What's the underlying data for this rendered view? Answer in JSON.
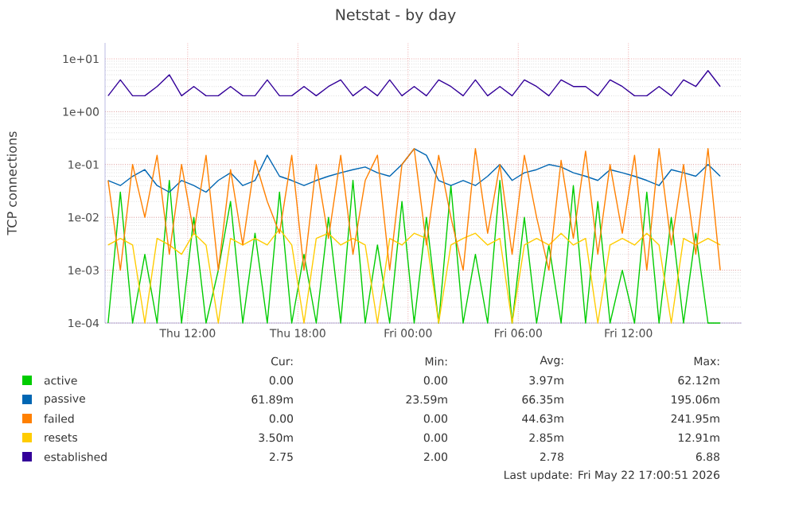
{
  "chart_data": {
    "type": "line",
    "title": "Netstat - by day",
    "ylabel": "TCP connections",
    "log": "y",
    "grid": true,
    "legend": "bottom",
    "xlim": [
      "2026-05-21T07:30",
      "2026-05-22T18:10"
    ],
    "xticks": [
      {
        "value": "2026-05-21T12:00",
        "label": "Thu 12:00"
      },
      {
        "value": "2026-05-21T18:00",
        "label": "Thu 18:00"
      },
      {
        "value": "2026-05-22T00:00",
        "label": "Fri 00:00"
      },
      {
        "value": "2026-05-22T06:00",
        "label": "Fri 06:00"
      },
      {
        "value": "2026-05-22T12:00",
        "label": "Fri 12:00"
      }
    ],
    "ylim": [
      0.0001,
      20
    ],
    "yticks": [
      {
        "value": 0.0001,
        "label": "1e-04"
      },
      {
        "value": 0.001,
        "label": "1e-03"
      },
      {
        "value": 0.01,
        "label": "1e-02"
      },
      {
        "value": 0.1,
        "label": "1e-01"
      },
      {
        "value": 1,
        "label": "1e+00"
      },
      {
        "value": 10,
        "label": "1e+01"
      }
    ],
    "x": [
      "2026-05-21T07:40",
      "2026-05-21T08:20",
      "2026-05-21T09:00",
      "2026-05-21T09:40",
      "2026-05-21T10:20",
      "2026-05-21T11:00",
      "2026-05-21T11:40",
      "2026-05-21T12:20",
      "2026-05-21T13:00",
      "2026-05-21T13:40",
      "2026-05-21T14:20",
      "2026-05-21T15:00",
      "2026-05-21T15:40",
      "2026-05-21T16:20",
      "2026-05-21T17:00",
      "2026-05-21T17:40",
      "2026-05-21T18:20",
      "2026-05-21T19:00",
      "2026-05-21T19:40",
      "2026-05-21T20:20",
      "2026-05-21T21:00",
      "2026-05-21T21:40",
      "2026-05-21T22:20",
      "2026-05-21T23:00",
      "2026-05-21T23:40",
      "2026-05-22T00:20",
      "2026-05-22T01:00",
      "2026-05-22T01:40",
      "2026-05-22T02:20",
      "2026-05-22T03:00",
      "2026-05-22T03:40",
      "2026-05-22T04:20",
      "2026-05-22T05:00",
      "2026-05-22T05:40",
      "2026-05-22T06:20",
      "2026-05-22T07:00",
      "2026-05-22T07:40",
      "2026-05-22T08:20",
      "2026-05-22T09:00",
      "2026-05-22T09:40",
      "2026-05-22T10:20",
      "2026-05-22T11:00",
      "2026-05-22T11:40",
      "2026-05-22T12:20",
      "2026-05-22T13:00",
      "2026-05-22T13:40",
      "2026-05-22T14:20",
      "2026-05-22T15:00",
      "2026-05-22T15:40",
      "2026-05-22T16:20",
      "2026-05-22T17:00"
    ],
    "series": [
      {
        "name": "active",
        "color": "#00cc00",
        "values": [
          0.0001,
          0.03,
          0.0001,
          0.002,
          0.0001,
          0.05,
          0.0001,
          0.01,
          0.0001,
          0.001,
          0.02,
          0.0001,
          0.005,
          0.0001,
          0.03,
          0.0001,
          0.002,
          0.0001,
          0.01,
          0.0001,
          0.05,
          0.0001,
          0.003,
          0.0001,
          0.02,
          0.0001,
          0.01,
          0.0001,
          0.04,
          0.0001,
          0.002,
          0.0001,
          0.05,
          0.0001,
          0.01,
          0.0001,
          0.003,
          0.0001,
          0.04,
          0.0001,
          0.02,
          0.0001,
          0.001,
          0.0001,
          0.03,
          0.0001,
          0.01,
          0.0001,
          0.005,
          0.0001,
          0.0001
        ]
      },
      {
        "name": "passive",
        "color": "#0066b3",
        "values": [
          0.05,
          0.04,
          0.06,
          0.08,
          0.04,
          0.03,
          0.05,
          0.04,
          0.03,
          0.05,
          0.07,
          0.04,
          0.05,
          0.15,
          0.06,
          0.05,
          0.04,
          0.05,
          0.06,
          0.07,
          0.08,
          0.09,
          0.07,
          0.06,
          0.1,
          0.2,
          0.15,
          0.05,
          0.04,
          0.05,
          0.04,
          0.06,
          0.1,
          0.05,
          0.07,
          0.08,
          0.1,
          0.09,
          0.07,
          0.06,
          0.05,
          0.08,
          0.07,
          0.06,
          0.05,
          0.04,
          0.08,
          0.07,
          0.06,
          0.1,
          0.06
        ]
      },
      {
        "name": "failed",
        "color": "#ff8000",
        "values": [
          0.05,
          0.001,
          0.1,
          0.01,
          0.15,
          0.002,
          0.1,
          0.005,
          0.15,
          0.001,
          0.08,
          0.003,
          0.12,
          0.02,
          0.005,
          0.15,
          0.001,
          0.1,
          0.004,
          0.15,
          0.002,
          0.05,
          0.15,
          0.001,
          0.1,
          0.2,
          0.003,
          0.15,
          0.01,
          0.001,
          0.2,
          0.005,
          0.1,
          0.002,
          0.15,
          0.01,
          0.001,
          0.12,
          0.004,
          0.18,
          0.002,
          0.1,
          0.005,
          0.15,
          0.001,
          0.2,
          0.003,
          0.1,
          0.002,
          0.2,
          0.001
        ]
      },
      {
        "name": "resets",
        "color": "#ffcc00",
        "values": [
          0.003,
          0.004,
          0.003,
          0.0001,
          0.004,
          0.003,
          0.002,
          0.005,
          0.003,
          0.0001,
          0.004,
          0.003,
          0.004,
          0.003,
          0.006,
          0.003,
          0.0001,
          0.004,
          0.005,
          0.003,
          0.004,
          0.003,
          0.0001,
          0.004,
          0.003,
          0.005,
          0.004,
          0.0001,
          0.003,
          0.004,
          0.005,
          0.003,
          0.004,
          0.0001,
          0.003,
          0.004,
          0.003,
          0.005,
          0.003,
          0.004,
          0.0001,
          0.003,
          0.004,
          0.003,
          0.005,
          0.003,
          0.0001,
          0.004,
          0.003,
          0.004,
          0.003
        ]
      },
      {
        "name": "established",
        "color": "#330099",
        "values": [
          2,
          4,
          2,
          2,
          3,
          5,
          2,
          3,
          2,
          2,
          3,
          2,
          2,
          4,
          2,
          2,
          3,
          2,
          3,
          4,
          2,
          3,
          2,
          4,
          2,
          3,
          2,
          4,
          3,
          2,
          4,
          2,
          3,
          2,
          4,
          3,
          2,
          4,
          3,
          3,
          2,
          4,
          3,
          2,
          2,
          3,
          2,
          4,
          3,
          6,
          3
        ]
      }
    ],
    "annotations": [
      "Cur:",
      "Min:",
      "Avg:",
      "Max:",
      "0.00",
      "0.00",
      "3.97m",
      "62.12m",
      "61.89m",
      "23.59m",
      "66.35m",
      "195.06m",
      "0.00",
      "0.00",
      "44.63m",
      "241.95m",
      "3.50m",
      "0.00",
      "2.85m",
      "12.91m",
      "2.75",
      "2.00",
      "2.78",
      "6.88",
      "Last update: Fri May 22 17:00:51 2026"
    ]
  }
}
